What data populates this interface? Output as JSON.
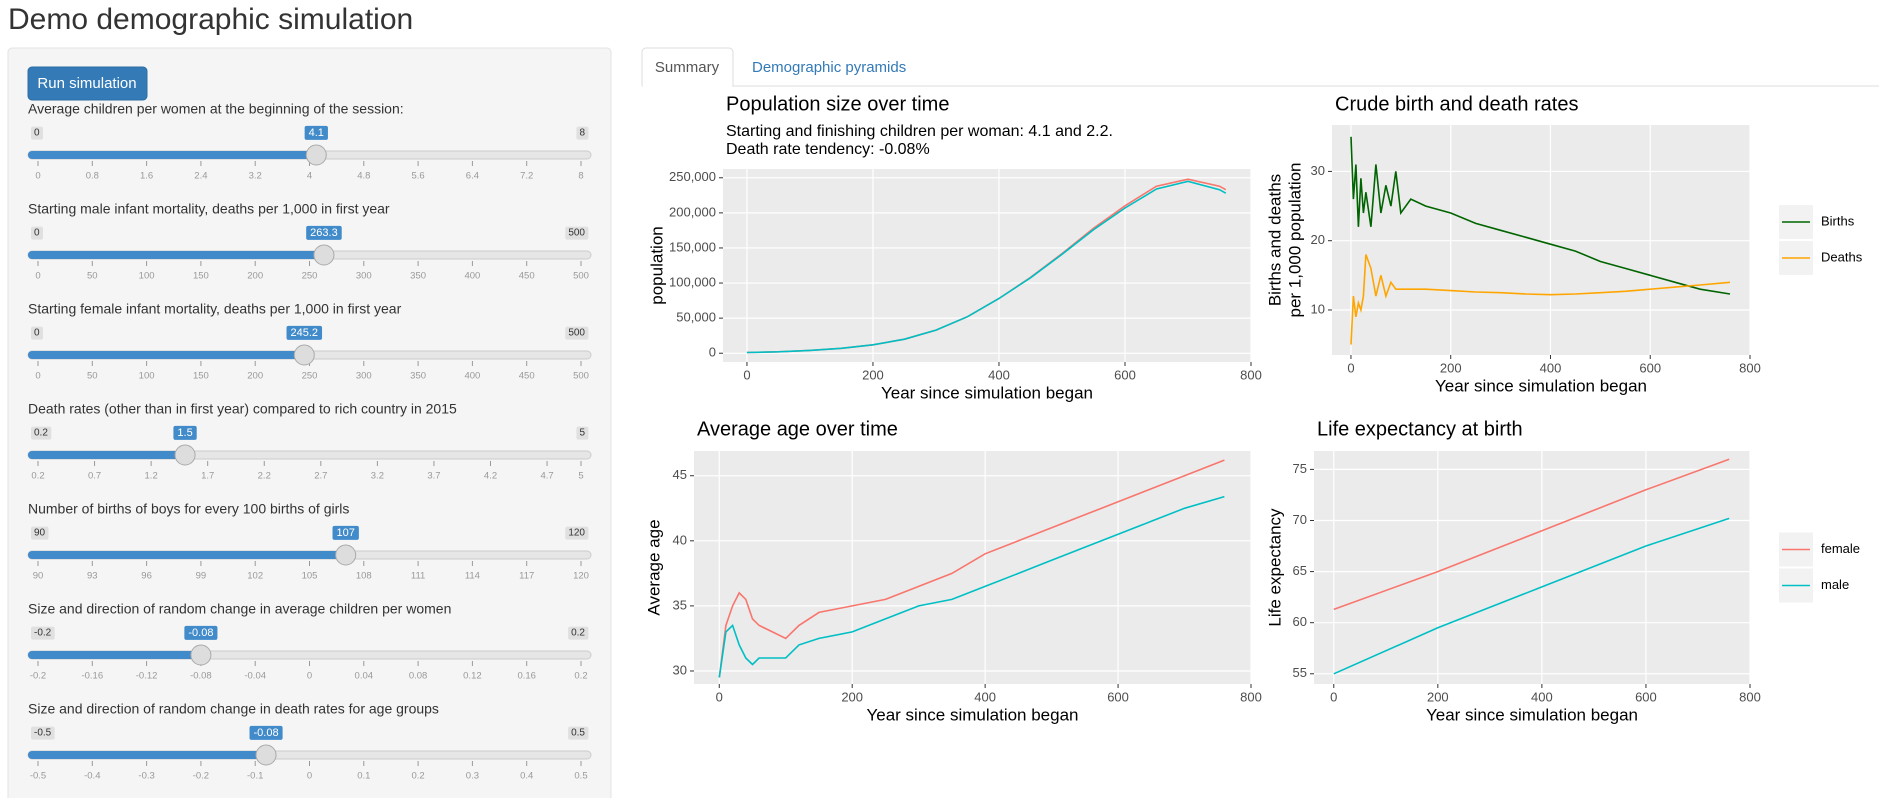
{
  "header": {
    "title": "Demo demographic simulation"
  },
  "sidebar": {
    "button": "Run simulation",
    "sliders": [
      {
        "label": "Average children per women at the beginning of the session:",
        "min": 0,
        "max": 8,
        "value": 4.1,
        "ticks": [
          0,
          0.8,
          1.6,
          2.4,
          3.2,
          4,
          4.8,
          5.6,
          6.4,
          7.2,
          8
        ]
      },
      {
        "label": "Starting male infant mortality, deaths per 1,000 in first year",
        "min": 0,
        "max": 500,
        "value": 263.3,
        "ticks": [
          0,
          50,
          100,
          150,
          200,
          250,
          300,
          350,
          400,
          450,
          500
        ]
      },
      {
        "label": "Starting female infant mortality, deaths per 1,000 in first year",
        "min": 0,
        "max": 500,
        "value": 245.2,
        "ticks": [
          0,
          50,
          100,
          150,
          200,
          250,
          300,
          350,
          400,
          450,
          500
        ]
      },
      {
        "label": "Death rates (other than in first year) compared to rich country in 2015",
        "min": 0.2,
        "max": 5,
        "value": 1.5,
        "ticks": [
          0.2,
          0.7,
          1.2,
          1.7,
          2.2,
          2.7,
          3.2,
          3.7,
          4.2,
          4.7,
          5
        ]
      },
      {
        "label": "Number of births of boys for every 100 births of girls",
        "min": 90,
        "max": 120,
        "value": 107,
        "ticks": [
          90,
          93,
          96,
          99,
          102,
          105,
          108,
          111,
          114,
          117,
          120
        ]
      },
      {
        "label": "Size and direction of random change in average children per women",
        "min": -0.2,
        "max": 0.2,
        "value": -0.08,
        "ticks": [
          -0.2,
          -0.16,
          -0.12,
          -0.08,
          -0.04,
          0,
          0.04,
          0.08,
          0.12,
          0.16,
          0.2
        ]
      },
      {
        "label": "Size and direction of random change in death rates for age groups",
        "min": -0.5,
        "max": 0.5,
        "value": -0.08,
        "ticks": [
          -0.5,
          -0.4,
          -0.3,
          -0.2,
          -0.1,
          0,
          0.1,
          0.2,
          0.3,
          0.4,
          0.5
        ]
      }
    ]
  },
  "tabs": [
    "Summary",
    "Demographic pyramids"
  ],
  "chart_data": [
    {
      "type": "line",
      "title": "Population size over time",
      "subtitle": [
        "Starting and finishing children per woman: 4.1 and 2.2.",
        "Death rate tendency: -0.08%"
      ],
      "xlabel": "Year since simulation began",
      "ylabel": [
        "population"
      ],
      "x": [
        0,
        50,
        100,
        150,
        200,
        250,
        300,
        350,
        400,
        450,
        500,
        550,
        600,
        650,
        700,
        750,
        760
      ],
      "series": [
        {
          "color": "#F8766D",
          "values": [
            1000,
            2000,
            4000,
            7000,
            12000,
            20000,
            33000,
            52000,
            78000,
            108000,
            142000,
            178000,
            210000,
            238000,
            248000,
            238000,
            233000
          ]
        },
        {
          "color": "#00BFC4",
          "values": [
            1000,
            2000,
            4000,
            7000,
            12000,
            20000,
            33000,
            52000,
            78000,
            107500,
            141000,
            176000,
            207000,
            234000,
            245000,
            233000,
            228000
          ]
        }
      ],
      "xlim": [
        -38,
        800
      ],
      "xticks": [
        0,
        200,
        400,
        600,
        800
      ],
      "ylim": [
        -12500,
        262500
      ],
      "yticks": [
        0,
        {
          "value": 50000,
          "label": "50,000"
        },
        {
          "value": 100000,
          "label": "100,000"
        },
        {
          "value": 150000,
          "label": "150,000"
        },
        {
          "value": 200000,
          "label": "200,000"
        },
        {
          "value": 250000,
          "label": "250,000"
        }
      ],
      "grid": true
    },
    {
      "type": "line",
      "title": "Crude birth and death rates",
      "xlabel": "Year since simulation began",
      "ylabel": [
        "Births and deaths",
        "per 1,000 population"
      ],
      "x": [
        0,
        5,
        10,
        15,
        20,
        25,
        30,
        40,
        50,
        60,
        70,
        80,
        90,
        100,
        120,
        150,
        200,
        250,
        300,
        350,
        400,
        450,
        500,
        550,
        600,
        650,
        700,
        760
      ],
      "series": [
        {
          "name": "Births",
          "color": "#006400",
          "values": [
            35,
            26,
            31,
            22,
            29,
            24,
            27,
            22,
            31,
            24,
            28,
            25,
            30,
            24,
            26,
            25,
            24,
            22.5,
            21.5,
            20.5,
            19.5,
            18.5,
            17,
            16,
            15,
            14,
            13,
            12.3
          ]
        },
        {
          "name": "Deaths",
          "color": "#FFA500",
          "values": [
            5,
            12,
            9,
            11,
            10,
            12,
            18,
            16,
            12,
            15,
            12,
            14,
            13,
            13,
            13,
            13,
            12.8,
            12.6,
            12.5,
            12.3,
            12.2,
            12.3,
            12.5,
            12.7,
            13,
            13.3,
            13.6,
            14
          ]
        }
      ],
      "xlim": [
        -38,
        800
      ],
      "xticks": [
        0,
        200,
        400,
        600,
        800
      ],
      "ylim": [
        3.5,
        36.7
      ],
      "yticks": [
        10,
        20,
        30
      ],
      "grid": true
    },
    {
      "type": "line",
      "title": "Average age over time",
      "xlabel": "Year since simulation began",
      "ylabel": [
        "Average age"
      ],
      "x": [
        0,
        10,
        20,
        30,
        40,
        50,
        60,
        80,
        100,
        120,
        150,
        200,
        250,
        300,
        350,
        400,
        450,
        500,
        550,
        600,
        650,
        700,
        760
      ],
      "series": [
        {
          "color": "#F8766D",
          "values": [
            29.5,
            33.5,
            35,
            36,
            35.5,
            34,
            33.5,
            33,
            32.5,
            33.5,
            34.5,
            35,
            35.5,
            36.5,
            37.5,
            39,
            40,
            41,
            42,
            43,
            44,
            45,
            46.2
          ]
        },
        {
          "color": "#00BFC4",
          "values": [
            29.5,
            33,
            33.5,
            32,
            31,
            30.5,
            31,
            31,
            31,
            32,
            32.5,
            33,
            34,
            35,
            35.5,
            36.5,
            37.5,
            38.5,
            39.5,
            40.5,
            41.5,
            42.5,
            43.4
          ]
        }
      ],
      "xlim": [
        -38,
        800
      ],
      "xticks": [
        0,
        200,
        400,
        600,
        800
      ],
      "ylim": [
        29,
        46.9
      ],
      "yticks": [
        30,
        35,
        40,
        45
      ],
      "grid": true
    },
    {
      "type": "line",
      "title": "Life expectancy at birth",
      "xlabel": "Year since simulation began",
      "ylabel": [
        "Life expectancy"
      ],
      "x": [
        0,
        200,
        400,
        600,
        760
      ],
      "series": [
        {
          "name": "female",
          "color": "#F8766D",
          "values": [
            61.3,
            65,
            69,
            73,
            76
          ]
        },
        {
          "name": "male",
          "color": "#00BFC4",
          "values": [
            55,
            59.5,
            63.5,
            67.5,
            70.2
          ]
        }
      ],
      "xlim": [
        -38,
        800
      ],
      "xticks": [
        0,
        200,
        400,
        600,
        800
      ],
      "ylim": [
        54,
        76.8
      ],
      "yticks": [
        55,
        60,
        65,
        70,
        75
      ],
      "grid": true
    }
  ]
}
